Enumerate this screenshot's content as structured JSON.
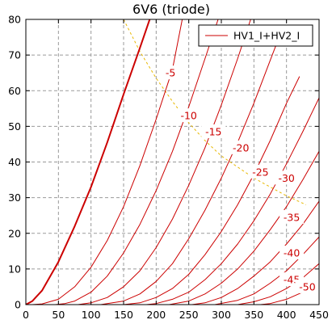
{
  "chart_data": {
    "type": "line",
    "title": "6V6  (triode)",
    "xlabel": "",
    "ylabel": "",
    "xlim": [
      0,
      450
    ],
    "ylim": [
      0,
      80
    ],
    "xticks": [
      0,
      50,
      100,
      150,
      200,
      250,
      300,
      350,
      400,
      450
    ],
    "yticks": [
      0,
      10,
      20,
      30,
      40,
      50,
      60,
      70,
      80
    ],
    "grid": true,
    "legend": {
      "position": "top-right",
      "entries": [
        {
          "label": "HV1_I+HV2_I",
          "color": "#cc0000"
        }
      ]
    },
    "colors": {
      "curves": "#cc0000",
      "load_line": "#e8b800",
      "label_text": "#cc0000"
    },
    "series": [
      {
        "grid_voltage": 0,
        "x": [
          0,
          10,
          25,
          50,
          75,
          100,
          125,
          150,
          175,
          190
        ],
        "y": [
          0,
          1,
          4,
          12,
          22,
          33,
          45.5,
          59,
          72,
          80
        ]
      },
      {
        "grid_voltage": -5,
        "x": [
          10,
          25,
          50,
          75,
          100,
          125,
          150,
          175,
          200,
          225,
          240
        ],
        "y": [
          0,
          0.2,
          1.5,
          5,
          10.5,
          18,
          27.5,
          39,
          52,
          66,
          80
        ]
      },
      {
        "grid_voltage": -10,
        "x": [
          45,
          60,
          75,
          100,
          125,
          150,
          175,
          200,
          225,
          250,
          275,
          295
        ],
        "y": [
          0,
          0.3,
          1,
          3.5,
          8,
          14.5,
          22.5,
          32,
          43,
          55.5,
          69,
          80
        ]
      },
      {
        "grid_voltage": -15,
        "x": [
          80,
          100,
          125,
          150,
          175,
          200,
          225,
          250,
          275,
          300,
          325,
          345
        ],
        "y": [
          0,
          0.5,
          2,
          5,
          9.5,
          16,
          24,
          33.5,
          44,
          56,
          69,
          80
        ]
      },
      {
        "grid_voltage": -20,
        "x": [
          115,
          150,
          175,
          200,
          225,
          250,
          275,
          300,
          325,
          350,
          375,
          395
        ],
        "y": [
          0,
          1,
          3,
          6.5,
          11.5,
          18.5,
          26.5,
          35.5,
          45.5,
          56.5,
          68.5,
          78
        ]
      },
      {
        "grid_voltage": -25,
        "x": [
          150,
          175,
          200,
          225,
          250,
          275,
          300,
          325,
          350,
          375,
          400,
          420
        ],
        "y": [
          0,
          0.5,
          2,
          4.5,
          8.5,
          14,
          20.5,
          28,
          36.5,
          46,
          56.5,
          64
        ]
      },
      {
        "grid_voltage": -30,
        "x": [
          185,
          200,
          225,
          250,
          275,
          300,
          325,
          350,
          375,
          400,
          425,
          450
        ],
        "y": [
          0,
          0.3,
          1.5,
          3.5,
          7,
          11.5,
          17,
          23.5,
          31,
          39.5,
          48.5,
          58
        ]
      },
      {
        "grid_voltage": -35,
        "x": [
          220,
          250,
          275,
          300,
          325,
          350,
          375,
          400,
          425,
          450
        ],
        "y": [
          0,
          1,
          3,
          6,
          10,
          15,
          21,
          27.5,
          35,
          43
        ]
      },
      {
        "grid_voltage": -40,
        "x": [
          255,
          275,
          300,
          325,
          350,
          375,
          400,
          425,
          450
        ],
        "y": [
          0,
          0.5,
          2,
          4.5,
          8,
          12,
          17,
          22.5,
          29
        ]
      },
      {
        "grid_voltage": -45,
        "x": [
          290,
          325,
          350,
          375,
          400,
          425,
          450
        ],
        "y": [
          0,
          1.2,
          3,
          6,
          9.5,
          14,
          19
        ]
      },
      {
        "grid_voltage": -50,
        "x": [
          325,
          350,
          375,
          400,
          425,
          450
        ],
        "y": [
          0,
          0.8,
          2.2,
          4.5,
          7.5,
          11.5
        ]
      },
      {
        "grid_voltage": -55,
        "x": [
          360,
          375,
          400,
          425,
          450
        ],
        "y": [
          0,
          0.3,
          1.5,
          3.5,
          6
        ]
      }
    ],
    "load_line": {
      "x": [
        150,
        175,
        200,
        225,
        250,
        275,
        300,
        350,
        400,
        430
      ],
      "y": [
        80,
        71,
        63.5,
        57,
        51,
        46,
        41.7,
        35.5,
        30.5,
        28
      ]
    },
    "curve_labels": [
      {
        "text": "-5",
        "x": 222,
        "y": 65
      },
      {
        "text": "-10",
        "x": 250,
        "y": 53
      },
      {
        "text": "-15",
        "x": 288,
        "y": 48.5
      },
      {
        "text": "-20",
        "x": 330,
        "y": 44
      },
      {
        "text": "-25",
        "x": 360,
        "y": 37.2
      },
      {
        "text": "-30",
        "x": 400,
        "y": 35.5
      },
      {
        "text": "-35",
        "x": 408,
        "y": 24.5
      },
      {
        "text": "-40",
        "x": 408,
        "y": 14.5
      },
      {
        "text": "-45",
        "x": 408,
        "y": 7
      },
      {
        "text": "-50",
        "x": 432,
        "y": 5
      }
    ]
  }
}
